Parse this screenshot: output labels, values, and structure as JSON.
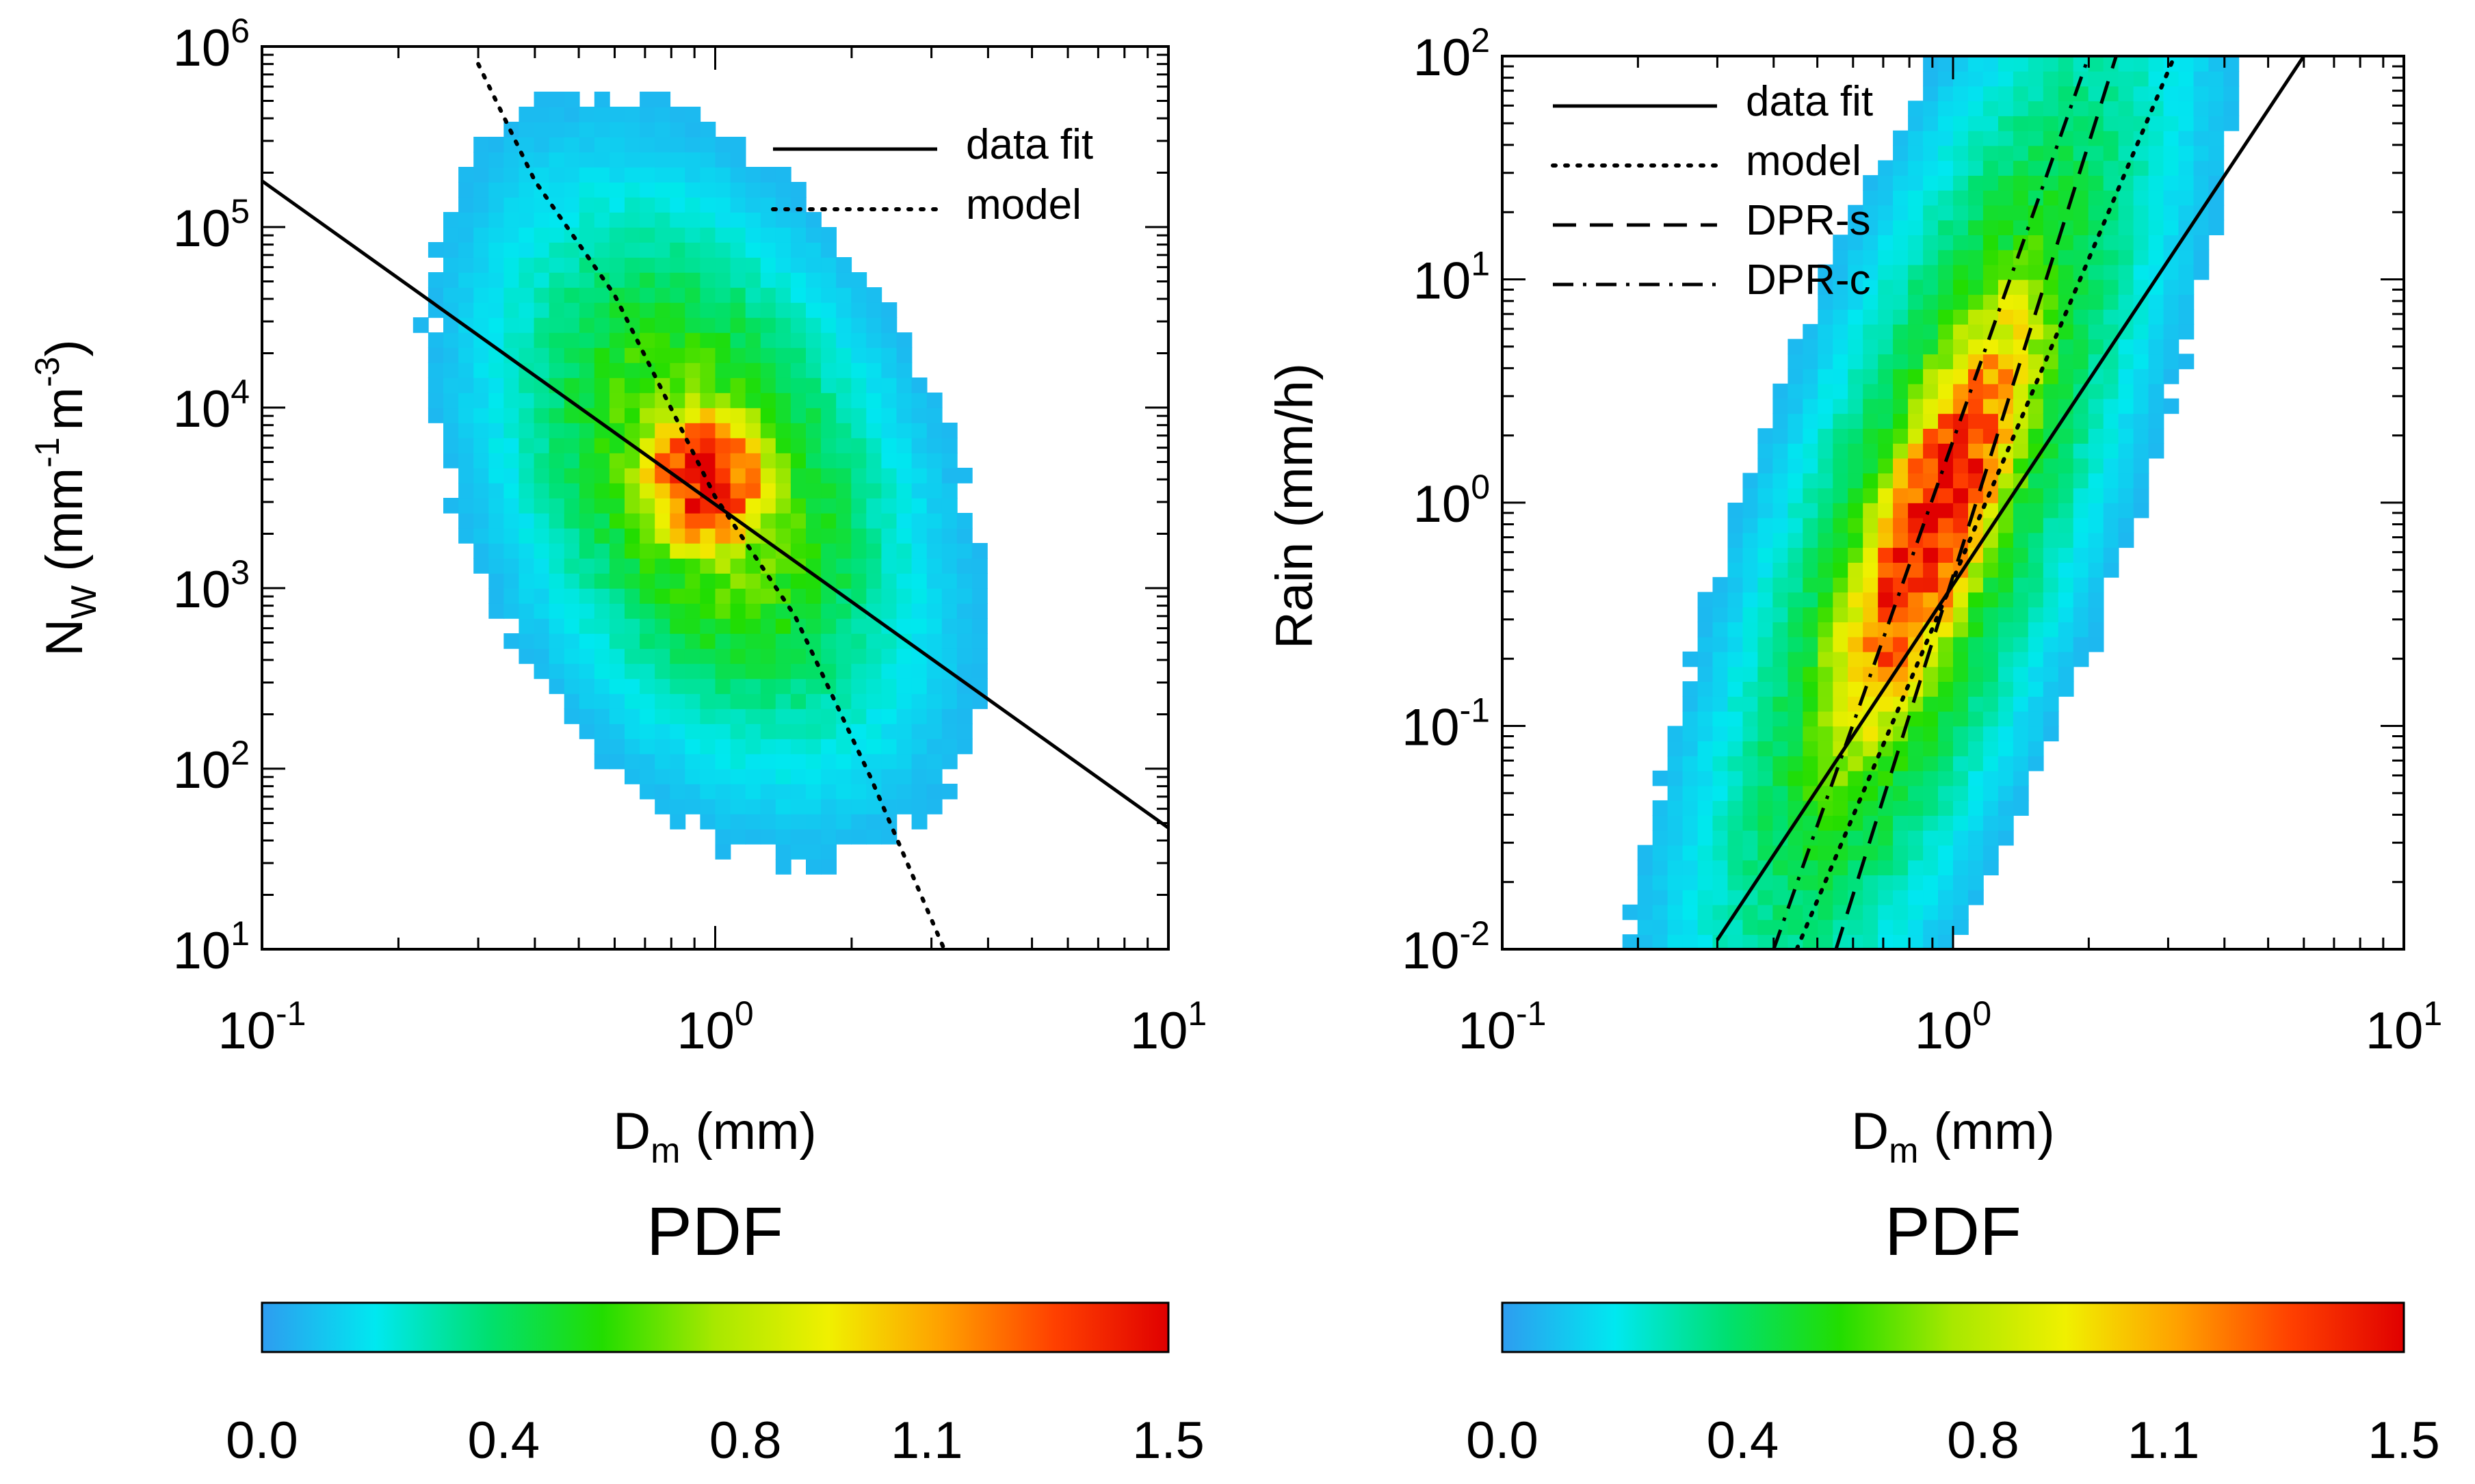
{
  "figure": {
    "colorbar_title": "PDF",
    "colorbar_ticks": [
      "0.0",
      "0.4",
      "0.8",
      "1.1",
      "1.5"
    ],
    "colorbar_range": [
      0.0,
      1.5
    ],
    "colormap": [
      "#2e9cf0",
      "#00e8f0",
      "#00e070",
      "#22dd00",
      "#a8e800",
      "#f0f000",
      "#ffa000",
      "#ff4000",
      "#e00000"
    ]
  },
  "chart_data": [
    {
      "type": "heatmap",
      "panel": "left",
      "title": "",
      "xlabel_main": "D",
      "xlabel_sub": "m",
      "xlabel_unit": "(mm)",
      "ylabel_main": "N",
      "ylabel_sub": "W",
      "ylabel_unit_pre": "(mm",
      "ylabel_exp1": "-1",
      "ylabel_unit_mid": "m",
      "ylabel_exp2": "-3",
      "ylabel_unit_post": ")",
      "xscale": "log",
      "yscale": "log",
      "xlim": [
        0.1,
        10
      ],
      "ylim": [
        10,
        1000000
      ],
      "x_tick_base": [
        "10",
        "10",
        "10"
      ],
      "x_tick_exp": [
        "-1",
        "0",
        "1"
      ],
      "x_tick_values": [
        0.1,
        1,
        10
      ],
      "y_tick_base": [
        "10",
        "10",
        "10",
        "10",
        "10",
        "10"
      ],
      "y_tick_exp": [
        "1",
        "2",
        "3",
        "4",
        "5",
        "6"
      ],
      "y_tick_values": [
        10,
        100,
        1000,
        10000,
        100000,
        1000000
      ],
      "legend_position": "top-right",
      "series": [
        {
          "name": "data fit",
          "style": "solid",
          "x": [
            0.1,
            10
          ],
          "y": [
            180000,
            47
          ]
        },
        {
          "name": "model",
          "style": "dotted",
          "x": [
            0.3,
            0.4,
            0.6,
            1.0,
            1.5,
            2.2,
            3.2
          ],
          "y": [
            800000,
            180000,
            42000,
            3200,
            700,
            90,
            10
          ]
        }
      ],
      "density_peak": {
        "x": 0.95,
        "y": 4000,
        "pdf": 1.5
      }
    },
    {
      "type": "heatmap",
      "panel": "right",
      "title": "",
      "xlabel_main": "D",
      "xlabel_sub": "m",
      "xlabel_unit": "(mm)",
      "ylabel": "Rain (mm/h)",
      "xscale": "log",
      "yscale": "log",
      "xlim": [
        0.1,
        10
      ],
      "ylim": [
        0.01,
        100
      ],
      "x_tick_base": [
        "10",
        "10",
        "10"
      ],
      "x_tick_exp": [
        "-1",
        "0",
        "1"
      ],
      "x_tick_values": [
        0.1,
        1,
        10
      ],
      "y_tick_base": [
        "10",
        "10",
        "10",
        "10",
        "10"
      ],
      "y_tick_exp": [
        "-2",
        "-1",
        "0",
        "1",
        "2"
      ],
      "y_tick_values": [
        0.01,
        0.1,
        1,
        10,
        100
      ],
      "legend_position": "top-left",
      "series": [
        {
          "name": "data fit",
          "style": "solid",
          "x": [
            0.3,
            6.0
          ],
          "y": [
            0.011,
            100
          ]
        },
        {
          "name": "model",
          "style": "dotted",
          "x": [
            0.45,
            3.1
          ],
          "y": [
            0.01,
            100
          ]
        },
        {
          "name": "DPR-s",
          "style": "dashed",
          "x": [
            0.55,
            2.3
          ],
          "y": [
            0.01,
            100
          ]
        },
        {
          "name": "DPR-c",
          "style": "dashdot",
          "x": [
            0.4,
            2.0
          ],
          "y": [
            0.01,
            100
          ]
        }
      ],
      "density_peak": {
        "x": 0.9,
        "y": 0.8,
        "pdf": 1.5
      }
    }
  ]
}
